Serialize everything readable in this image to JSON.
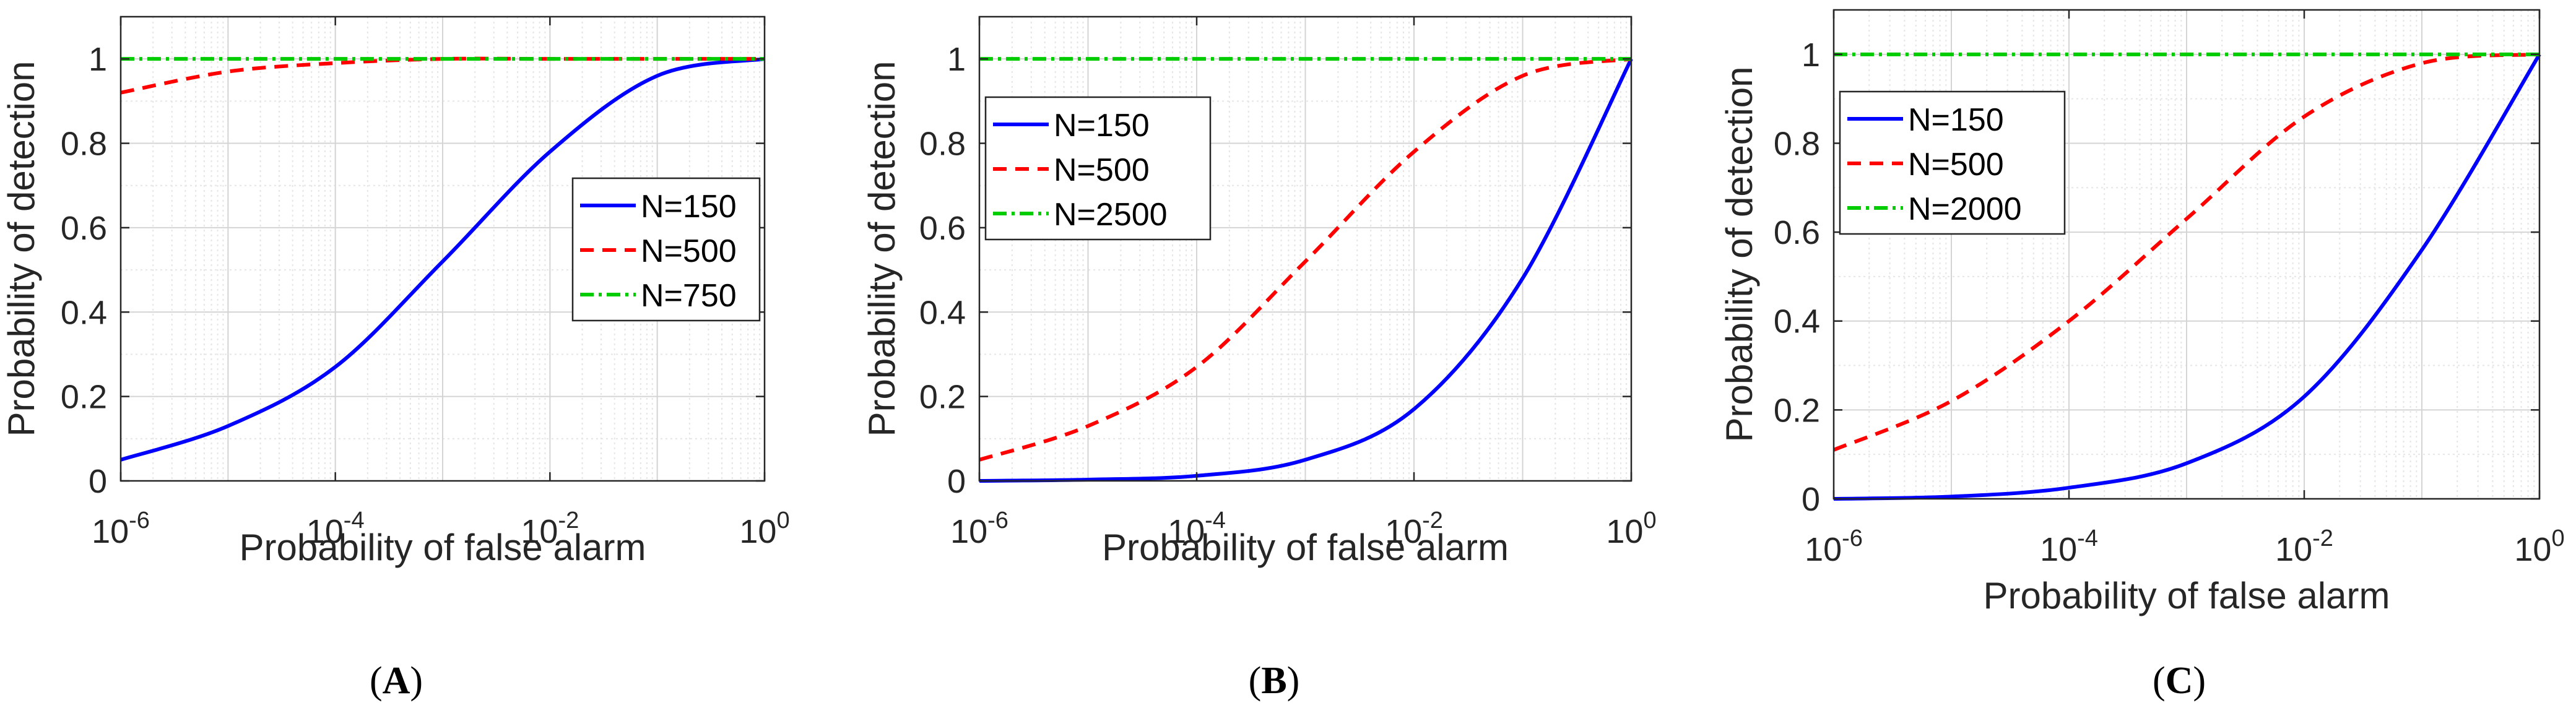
{
  "chart_data": [
    {
      "type": "line",
      "caption": "A",
      "xlabel": "Probability of false alarm",
      "ylabel": "Probability of detection",
      "xscale": "log",
      "xlim": [
        1e-06,
        1
      ],
      "ylim": [
        0,
        1.1
      ],
      "xticks": [
        1e-06,
        0.0001,
        0.01,
        1
      ],
      "yticks": [
        0,
        0.2,
        0.4,
        0.6,
        0.8,
        1
      ],
      "ytick_labels": [
        "0",
        "0.2",
        "0.4",
        "0.6",
        "0.8",
        "1"
      ],
      "grid": true,
      "legend_position": "center-right",
      "series": [
        {
          "name": "N=150",
          "style": "solid",
          "color": "#0000ff",
          "x": [
            1e-06,
            1e-05,
            0.0001,
            0.001,
            0.01,
            0.1,
            1
          ],
          "y": [
            0.05,
            0.13,
            0.27,
            0.52,
            0.78,
            0.96,
            1.0
          ]
        },
        {
          "name": "N=500",
          "style": "dashed",
          "color": "#ff0000",
          "x": [
            1e-06,
            1e-05,
            0.0001,
            0.001,
            0.01,
            0.1,
            1
          ],
          "y": [
            0.92,
            0.97,
            0.99,
            1.0,
            1.0,
            1.0,
            1.0
          ]
        },
        {
          "name": "N=750",
          "style": "dashdot",
          "color": "#00cc00",
          "x": [
            1e-06,
            1
          ],
          "y": [
            1.0,
            1.0
          ]
        }
      ]
    },
    {
      "type": "line",
      "caption": "B",
      "xlabel": "Probability of false alarm",
      "ylabel": "Probability of detection",
      "xscale": "log",
      "xlim": [
        1e-06,
        1
      ],
      "ylim": [
        0,
        1.1
      ],
      "xticks": [
        1e-06,
        0.0001,
        0.01,
        1
      ],
      "yticks": [
        0,
        0.2,
        0.4,
        0.6,
        0.8,
        1
      ],
      "ytick_labels": [
        "0",
        "0.2",
        "0.4",
        "0.6",
        "0.8",
        "1"
      ],
      "grid": true,
      "legend_position": "top-left",
      "series": [
        {
          "name": "N=150",
          "style": "solid",
          "color": "#0000ff",
          "x": [
            1e-06,
            1e-05,
            0.0001,
            0.001,
            0.01,
            0.1,
            1
          ],
          "y": [
            0.0,
            0.003,
            0.012,
            0.05,
            0.17,
            0.48,
            1.0
          ]
        },
        {
          "name": "N=500",
          "style": "dashed",
          "color": "#ff0000",
          "x": [
            1e-06,
            1e-05,
            0.0001,
            0.001,
            0.01,
            0.1,
            1
          ],
          "y": [
            0.05,
            0.13,
            0.27,
            0.52,
            0.78,
            0.96,
            1.0
          ]
        },
        {
          "name": "N=2500",
          "style": "dashdot",
          "color": "#00cc00",
          "x": [
            1e-06,
            1
          ],
          "y": [
            1.0,
            1.0
          ]
        }
      ]
    },
    {
      "type": "line",
      "caption": "C",
      "xlabel": "Probability of false alarm",
      "ylabel": "Probability of detection",
      "xscale": "log",
      "xlim": [
        1e-06,
        1
      ],
      "ylim": [
        0,
        1.1
      ],
      "xticks": [
        1e-06,
        0.0001,
        0.01,
        1
      ],
      "yticks": [
        0,
        0.2,
        0.4,
        0.6,
        0.8,
        1
      ],
      "ytick_labels": [
        "0",
        "0.2",
        "0.4",
        "0.6",
        "0.8",
        "1"
      ],
      "grid": true,
      "legend_position": "top-left",
      "series": [
        {
          "name": "N=150",
          "style": "solid",
          "color": "#0000ff",
          "x": [
            1e-06,
            1e-05,
            0.0001,
            0.001,
            0.01,
            0.1,
            1
          ],
          "y": [
            0.0,
            0.005,
            0.025,
            0.08,
            0.23,
            0.56,
            1.0
          ]
        },
        {
          "name": "N=500",
          "style": "dashed",
          "color": "#ff0000",
          "x": [
            1e-06,
            1e-05,
            0.0001,
            0.001,
            0.01,
            0.1,
            1
          ],
          "y": [
            0.11,
            0.22,
            0.4,
            0.63,
            0.86,
            0.98,
            1.0
          ]
        },
        {
          "name": "N=2000",
          "style": "dashdot",
          "color": "#00cc00",
          "x": [
            1e-06,
            1
          ],
          "y": [
            1.0,
            1.0
          ]
        }
      ]
    }
  ]
}
